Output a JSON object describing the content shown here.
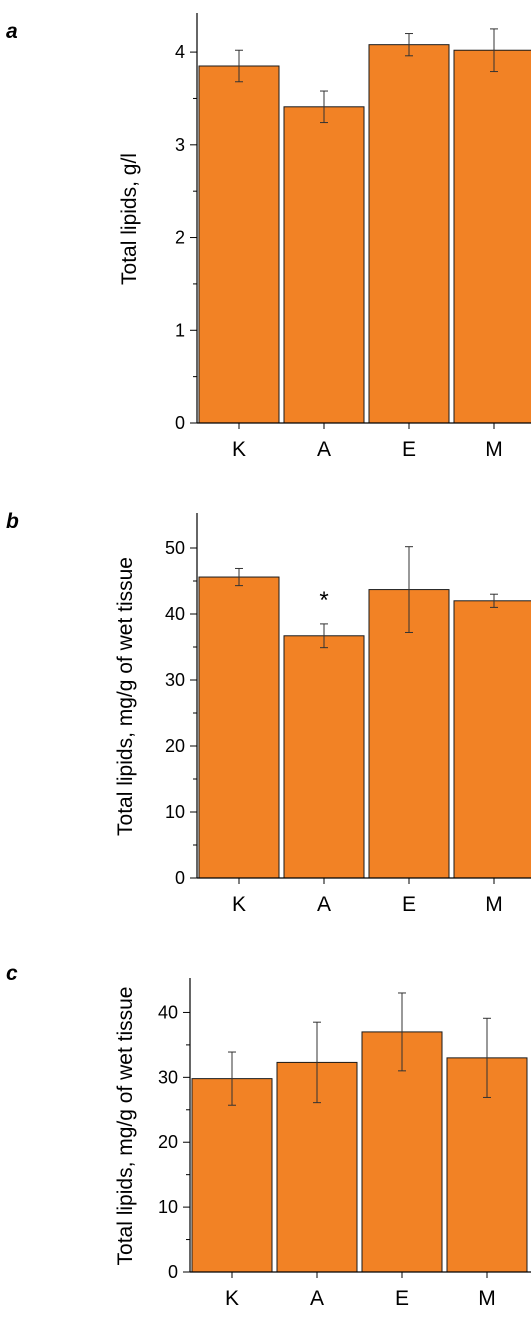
{
  "chart_data": [
    {
      "panel": "a",
      "type": "bar",
      "categories": [
        "K",
        "A",
        "E",
        "M"
      ],
      "values": [
        3.85,
        3.41,
        4.08,
        4.02
      ],
      "errors": [
        0.17,
        0.17,
        0.12,
        0.23
      ],
      "ylabel": "Total lipids, g/l",
      "ylim": [
        0,
        4.4
      ],
      "yticks": [
        0,
        1,
        2,
        3,
        4
      ],
      "bar_color": "#f28225",
      "annotations": []
    },
    {
      "panel": "b",
      "type": "bar",
      "categories": [
        "K",
        "A",
        "E",
        "M"
      ],
      "values": [
        45.6,
        36.7,
        43.7,
        42.0
      ],
      "errors": [
        1.3,
        1.8,
        6.5,
        1.0
      ],
      "ylabel": "Total lipids, mg/g of wet tissue",
      "ylim": [
        0,
        55
      ],
      "yticks": [
        0,
        10,
        20,
        30,
        40,
        50
      ],
      "bar_color": "#f28225",
      "annotations": [
        {
          "category": "A",
          "text": "*"
        }
      ]
    },
    {
      "panel": "c",
      "type": "bar",
      "categories": [
        "K",
        "A",
        "E",
        "M"
      ],
      "values": [
        29.8,
        32.3,
        37.0,
        33.0
      ],
      "errors": [
        4.1,
        6.2,
        6.0,
        6.1
      ],
      "ylabel": "Total lipids, mg/g of wet tissue",
      "ylim": [
        0,
        45
      ],
      "yticks": [
        0,
        10,
        20,
        30,
        40
      ],
      "bar_color": "#f28225",
      "annotations": []
    }
  ]
}
